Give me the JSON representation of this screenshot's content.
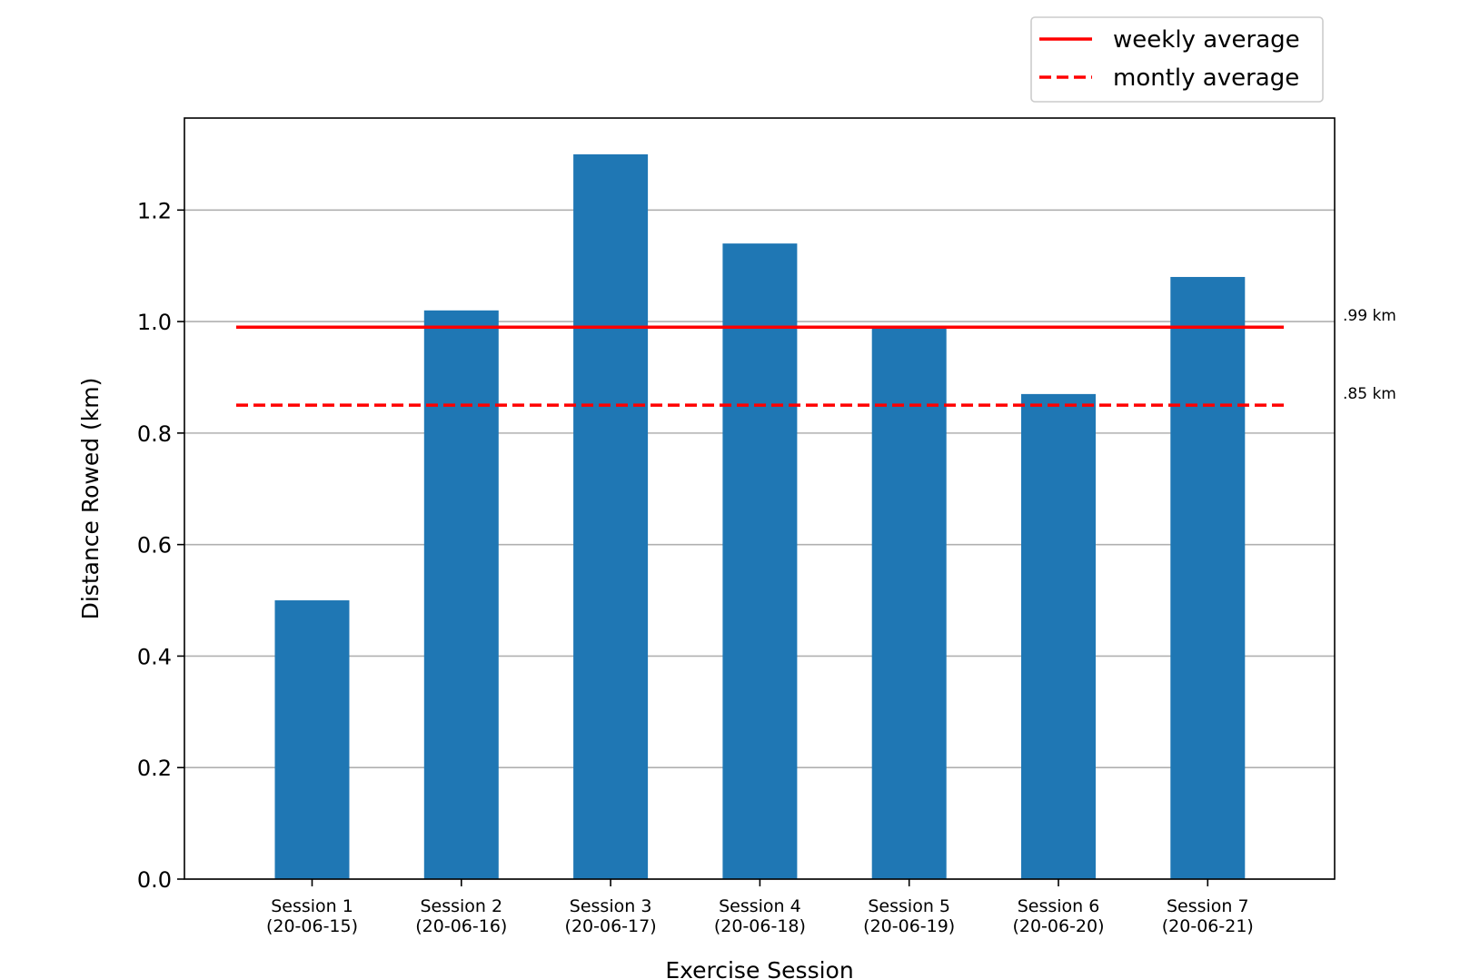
{
  "chart_data": {
    "type": "bar",
    "title": "",
    "xlabel": "Exercise Session",
    "ylabel": "Distance Rowed (km)",
    "ylim": [
      0,
      1.365
    ],
    "yticks": [
      0.0,
      0.2,
      0.4,
      0.6,
      0.8,
      1.0,
      1.2
    ],
    "ytick_labels": [
      "0.0",
      "0.2",
      "0.4",
      "0.6",
      "0.8",
      "1.0",
      "1.2"
    ],
    "grid": "horizontal",
    "legend_position": "top-right, above plot",
    "bar_color": "#1f77b4",
    "categories": [
      [
        "Session 1",
        "(20-06-15)"
      ],
      [
        "Session 2",
        "(20-06-16)"
      ],
      [
        "Session 3",
        "(20-06-17)"
      ],
      [
        "Session 4",
        "(20-06-18)"
      ],
      [
        "Session 5",
        "(20-06-19)"
      ],
      [
        "Session 6",
        "(20-06-20)"
      ],
      [
        "Session 7",
        "(20-06-21)"
      ]
    ],
    "values": [
      0.5,
      1.02,
      1.3,
      1.14,
      0.99,
      0.87,
      1.08
    ],
    "reference_lines": [
      {
        "name": "weekly average",
        "value": 0.99,
        "style": "solid",
        "color": "#ff0000",
        "annotation": ".99 km"
      },
      {
        "name": "montly average",
        "value": 0.85,
        "style": "dashed",
        "color": "#ff0000",
        "annotation": ".85 km"
      }
    ]
  }
}
